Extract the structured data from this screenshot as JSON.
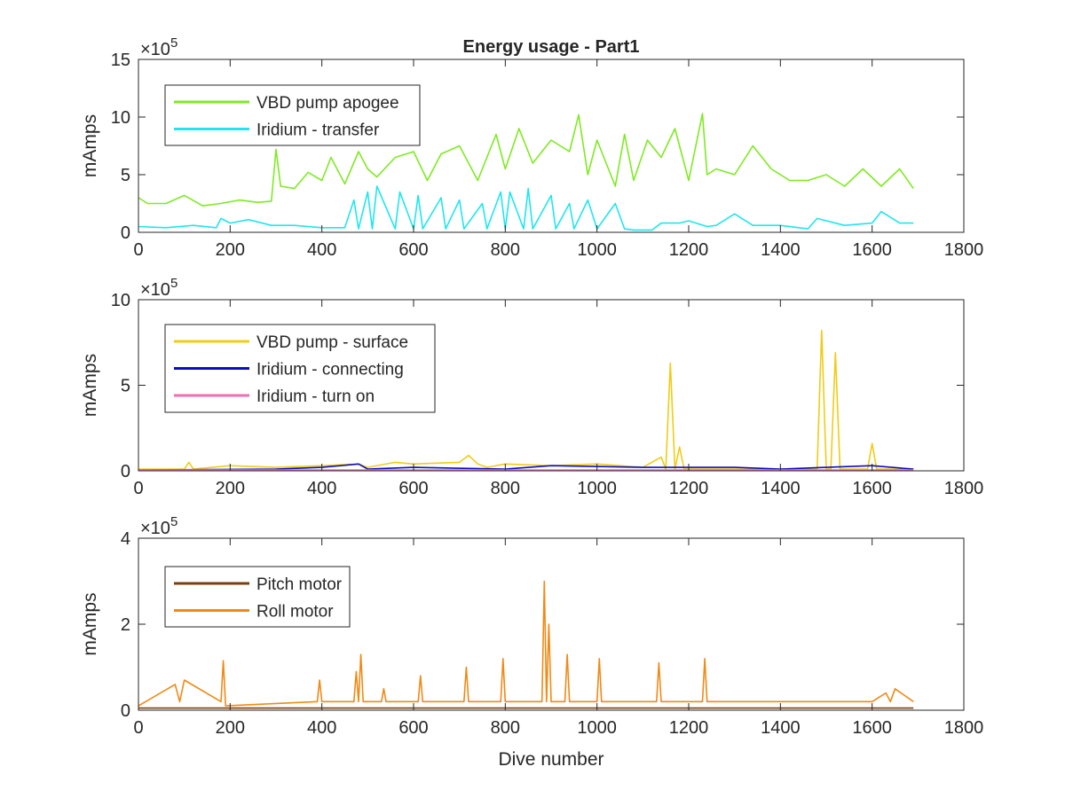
{
  "figure": {
    "background": "#ffffff",
    "axis_color": "#262626"
  },
  "chart_data": [
    {
      "type": "line",
      "title": "Energy usage - Part1",
      "ylabel": "mAmps",
      "xlabel": "",
      "xlim": [
        0,
        1800
      ],
      "ylim": [
        0,
        15
      ],
      "y_exponent": "×10^5",
      "exponent_base": "×10",
      "exponent_power": "5",
      "xticks": [
        0,
        200,
        400,
        600,
        800,
        1000,
        1200,
        1400,
        1600,
        1800
      ],
      "yticks": [
        0,
        5,
        10,
        15
      ],
      "legend_position": "top-left",
      "grid": false,
      "series": [
        {
          "name": "VBD pump apogee",
          "color": "#7fea22",
          "x": [
            0,
            20,
            60,
            100,
            140,
            180,
            220,
            260,
            290,
            300,
            310,
            340,
            370,
            400,
            420,
            450,
            480,
            500,
            520,
            560,
            600,
            630,
            660,
            700,
            740,
            780,
            800,
            830,
            860,
            900,
            940,
            960,
            980,
            1000,
            1040,
            1060,
            1080,
            1110,
            1140,
            1170,
            1200,
            1230,
            1240,
            1260,
            1300,
            1340,
            1380,
            1420,
            1460,
            1500,
            1540,
            1580,
            1620,
            1660,
            1690
          ],
          "y": [
            3.0,
            2.5,
            2.5,
            3.2,
            2.3,
            2.5,
            2.8,
            2.6,
            2.7,
            7.2,
            4.0,
            3.8,
            5.2,
            4.5,
            6.5,
            4.2,
            7.0,
            5.5,
            4.8,
            6.5,
            7.0,
            4.5,
            6.8,
            7.5,
            4.5,
            8.5,
            5.5,
            9.0,
            6.0,
            8.0,
            7.0,
            10.2,
            5.0,
            8.0,
            4.0,
            8.5,
            4.5,
            8.0,
            6.5,
            9.0,
            4.5,
            10.3,
            5.0,
            5.5,
            5.0,
            7.5,
            5.5,
            4.5,
            4.5,
            5.0,
            4.0,
            5.5,
            4.0,
            5.5,
            3.8
          ]
        },
        {
          "name": "Iridium - transfer",
          "color": "#1fe6ee",
          "x": [
            0,
            60,
            120,
            170,
            180,
            200,
            240,
            290,
            340,
            400,
            450,
            470,
            480,
            500,
            510,
            520,
            560,
            570,
            600,
            610,
            620,
            660,
            670,
            700,
            710,
            750,
            760,
            790,
            800,
            810,
            840,
            850,
            860,
            900,
            910,
            940,
            950,
            980,
            1000,
            1040,
            1060,
            1080,
            1120,
            1140,
            1180,
            1200,
            1240,
            1260,
            1300,
            1340,
            1400,
            1460,
            1480,
            1540,
            1600,
            1620,
            1660,
            1690
          ],
          "y": [
            0.5,
            0.4,
            0.6,
            0.4,
            1.2,
            0.8,
            1.1,
            0.6,
            0.6,
            0.4,
            0.4,
            2.8,
            0.3,
            3.5,
            0.3,
            4.0,
            0.3,
            3.5,
            0.3,
            3.2,
            0.3,
            3.0,
            0.3,
            2.8,
            0.3,
            2.5,
            0.3,
            3.5,
            0.3,
            3.5,
            0.3,
            3.8,
            0.3,
            3.2,
            0.3,
            2.5,
            0.3,
            2.8,
            0.3,
            2.5,
            0.3,
            0.2,
            0.2,
            0.8,
            0.8,
            1.0,
            0.5,
            0.6,
            1.6,
            0.6,
            0.6,
            0.3,
            1.2,
            0.6,
            0.8,
            1.8,
            0.8,
            0.8
          ]
        }
      ]
    },
    {
      "type": "line",
      "title": "",
      "ylabel": "mAmps",
      "xlabel": "",
      "xlim": [
        0,
        1800
      ],
      "ylim": [
        0,
        10
      ],
      "y_exponent": "×10^5",
      "exponent_base": "×10",
      "exponent_power": "5",
      "xticks": [
        0,
        200,
        400,
        600,
        800,
        1000,
        1200,
        1400,
        1600,
        1800
      ],
      "yticks": [
        0,
        5,
        10
      ],
      "legend_position": "top-left",
      "grid": false,
      "series": [
        {
          "name": "VBD pump - surface",
          "color": "#f0cc16",
          "x": [
            0,
            100,
            110,
            120,
            200,
            300,
            400,
            480,
            500,
            560,
            600,
            700,
            720,
            740,
            760,
            800,
            900,
            1000,
            1100,
            1140,
            1150,
            1160,
            1170,
            1180,
            1190,
            1300,
            1400,
            1480,
            1490,
            1500,
            1510,
            1520,
            1530,
            1540,
            1590,
            1600,
            1610,
            1690
          ],
          "y": [
            0.1,
            0.1,
            0.5,
            0.1,
            0.3,
            0.2,
            0.3,
            0.4,
            0.2,
            0.5,
            0.4,
            0.5,
            0.9,
            0.4,
            0.2,
            0.4,
            0.3,
            0.4,
            0.2,
            0.8,
            0.1,
            6.3,
            0.1,
            1.4,
            0.1,
            0.1,
            0.1,
            0.1,
            8.2,
            0.1,
            0.1,
            6.9,
            0.1,
            0.1,
            0.1,
            1.6,
            0.1,
            0.1
          ]
        },
        {
          "name": "Iridium - connecting",
          "color": "#0d0dbf",
          "x": [
            0,
            300,
            400,
            480,
            500,
            600,
            800,
            900,
            1100,
            1200,
            1300,
            1400,
            1500,
            1600,
            1690
          ],
          "y": [
            0.05,
            0.1,
            0.2,
            0.4,
            0.1,
            0.2,
            0.1,
            0.3,
            0.2,
            0.2,
            0.2,
            0.1,
            0.2,
            0.3,
            0.1
          ]
        },
        {
          "name": "Iridium - turn on",
          "color": "#f26eb0",
          "x": [
            0,
            200,
            400,
            600,
            800,
            1000,
            1200,
            1400,
            1600,
            1690
          ],
          "y": [
            0.05,
            0.05,
            0.05,
            0.05,
            0.05,
            0.05,
            0.05,
            0.05,
            0.05,
            0.05
          ]
        }
      ]
    },
    {
      "type": "line",
      "title": "",
      "ylabel": "mAmps",
      "xlabel": "Dive number",
      "xlim": [
        0,
        1800
      ],
      "ylim": [
        0,
        4
      ],
      "y_exponent": "×10^5",
      "exponent_base": "×10",
      "exponent_power": "5",
      "xticks": [
        0,
        200,
        400,
        600,
        800,
        1000,
        1200,
        1400,
        1600,
        1800
      ],
      "yticks": [
        0,
        2,
        4
      ],
      "legend_position": "top-left",
      "grid": false,
      "series": [
        {
          "name": "Pitch motor",
          "color": "#7a3f0e",
          "x": [
            0,
            200,
            400,
            600,
            800,
            1000,
            1200,
            1400,
            1600,
            1690
          ],
          "y": [
            0.05,
            0.05,
            0.05,
            0.05,
            0.05,
            0.05,
            0.05,
            0.05,
            0.05,
            0.05
          ]
        },
        {
          "name": "Roll motor",
          "color": "#ef8a17",
          "x": [
            0,
            80,
            90,
            100,
            180,
            185,
            190,
            390,
            395,
            400,
            470,
            475,
            480,
            485,
            490,
            530,
            535,
            540,
            610,
            615,
            620,
            710,
            715,
            720,
            790,
            795,
            800,
            880,
            885,
            890,
            895,
            900,
            930,
            935,
            940,
            1000,
            1005,
            1010,
            1130,
            1135,
            1140,
            1230,
            1235,
            1240,
            1600,
            1630,
            1640,
            1650,
            1690
          ],
          "y": [
            0.1,
            0.6,
            0.2,
            0.7,
            0.2,
            1.15,
            0.1,
            0.2,
            0.7,
            0.2,
            0.2,
            0.9,
            0.2,
            1.3,
            0.2,
            0.2,
            0.5,
            0.2,
            0.2,
            0.8,
            0.2,
            0.2,
            1.0,
            0.2,
            0.2,
            1.2,
            0.2,
            0.2,
            3.0,
            0.2,
            2.0,
            0.2,
            0.2,
            1.3,
            0.2,
            0.2,
            1.2,
            0.2,
            0.2,
            1.1,
            0.2,
            0.2,
            1.2,
            0.2,
            0.2,
            0.4,
            0.2,
            0.5,
            0.2
          ]
        }
      ]
    }
  ]
}
